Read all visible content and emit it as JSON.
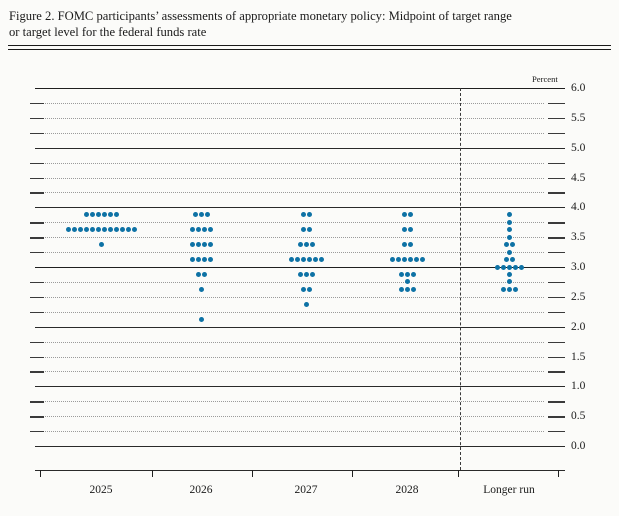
{
  "figure": {
    "title_line1": "Figure 2. FOMC participants’ assessments of appropriate monetary policy: Midpoint of target range",
    "title_line2": "or target level for the federal funds rate"
  },
  "chart_data": {
    "type": "scatter",
    "title": "FOMC participants’ assessments of appropriate monetary policy: Midpoint of target range or target level for the federal funds rate",
    "ylabel": "Percent",
    "ylim": [
      0.0,
      6.0
    ],
    "y_major_step": 0.5,
    "y_grid_solid_step": 1.0,
    "y_grid_dotted_step": 0.25,
    "ytick_labels": [
      "6.0",
      "5.5",
      "5.0",
      "4.5",
      "4.0",
      "3.5",
      "3.0",
      "2.5",
      "2.0",
      "1.5",
      "1.0",
      "0.5",
      "0.0"
    ],
    "grid": "on",
    "dot_color": "#0e72a5",
    "categories": [
      "2025",
      "2026",
      "2027",
      "2028",
      "Longer run"
    ],
    "columns": [
      {
        "label": "2025",
        "dots": [
          {
            "rate": 3.875,
            "count": 6
          },
          {
            "rate": 3.625,
            "count": 12
          },
          {
            "rate": 3.375,
            "count": 1
          }
        ]
      },
      {
        "label": "2026",
        "dots": [
          {
            "rate": 3.875,
            "count": 3
          },
          {
            "rate": 3.625,
            "count": 4
          },
          {
            "rate": 3.375,
            "count": 4
          },
          {
            "rate": 3.125,
            "count": 4
          },
          {
            "rate": 2.875,
            "count": 2
          },
          {
            "rate": 2.625,
            "count": 1
          },
          {
            "rate": 2.125,
            "count": 1
          }
        ]
      },
      {
        "label": "2027",
        "dots": [
          {
            "rate": 3.875,
            "count": 2
          },
          {
            "rate": 3.625,
            "count": 2
          },
          {
            "rate": 3.375,
            "count": 3
          },
          {
            "rate": 3.125,
            "count": 6
          },
          {
            "rate": 2.875,
            "count": 3
          },
          {
            "rate": 2.625,
            "count": 2
          },
          {
            "rate": 2.375,
            "count": 1
          }
        ]
      },
      {
        "label": "2028",
        "dots": [
          {
            "rate": 3.875,
            "count": 2
          },
          {
            "rate": 3.625,
            "count": 2
          },
          {
            "rate": 3.375,
            "count": 2
          },
          {
            "rate": 3.125,
            "count": 6
          },
          {
            "rate": 2.875,
            "count": 3
          },
          {
            "rate": 2.75,
            "count": 1
          },
          {
            "rate": 2.625,
            "count": 3
          }
        ]
      },
      {
        "label": "Longer run",
        "dots": [
          {
            "rate": 3.875,
            "count": 1
          },
          {
            "rate": 3.75,
            "count": 1
          },
          {
            "rate": 3.625,
            "count": 1
          },
          {
            "rate": 3.5,
            "count": 1
          },
          {
            "rate": 3.375,
            "count": 2
          },
          {
            "rate": 3.25,
            "count": 1
          },
          {
            "rate": 3.125,
            "count": 2
          },
          {
            "rate": 3.0,
            "count": 5
          },
          {
            "rate": 2.875,
            "count": 1
          },
          {
            "rate": 2.75,
            "count": 1
          },
          {
            "rate": 2.625,
            "count": 3
          }
        ]
      }
    ]
  }
}
